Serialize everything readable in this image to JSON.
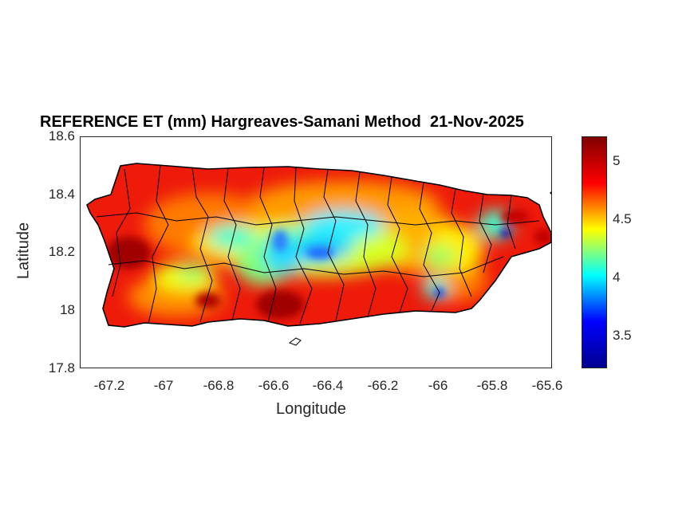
{
  "title": "REFERENCE ET (mm) Hargreaves-Samani Method  21-Nov-2025",
  "xlabel": "Longitude",
  "ylabel": "Latitude",
  "x_ticks": [
    "-67.2",
    "-67",
    "-66.8",
    "-66.6",
    "-66.4",
    "-66.2",
    "-66",
    "-65.8",
    "-65.6"
  ],
  "y_ticks": [
    "18.6",
    "18.4",
    "18.2",
    "18",
    "17.8"
  ],
  "colorbar": {
    "ticks": [
      "5",
      "4.5",
      "4",
      "3.5"
    ],
    "range": [
      3.2,
      5.2
    ],
    "colormap": "jet",
    "colors": [
      "#00008f",
      "#0000ff",
      "#00ffff",
      "#ffff00",
      "#ff0000",
      "#800000"
    ]
  },
  "map": {
    "region": "Puerto Rico",
    "xlim": [
      -67.3,
      -65.59
    ],
    "ylim": [
      17.8,
      18.6
    ],
    "low_et_areas": [
      "central mountain range",
      "El Yunque area",
      "Cayey area"
    ],
    "high_et_areas": [
      "coastal lowlands",
      "southwest",
      "south coast"
    ]
  }
}
